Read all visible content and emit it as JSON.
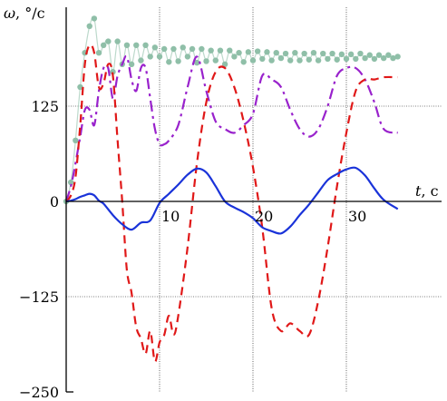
{
  "chart_data": {
    "type": "line",
    "title": "",
    "ylabel_symbol": "ω",
    "ylabel_unit": ", °/c",
    "xlabel_symbol": "t",
    "xlabel_unit": ", c",
    "xlim": [
      0,
      41
    ],
    "ylim": [
      -250,
      250
    ],
    "xticks": [
      10,
      20,
      30
    ],
    "xtick_labels": [
      "10",
      "20",
      "30"
    ],
    "yticks": [
      125,
      0,
      -125,
      -250
    ],
    "ytick_labels": [
      "125",
      "0",
      "−125",
      "−250"
    ],
    "grid": true,
    "colors": {
      "blue": "#1a33d9",
      "red": "#e01818",
      "purple": "#9922cc",
      "green": "#8fbfa8",
      "grid": "#000000",
      "axis": "#000000"
    },
    "series": [
      {
        "style": "solid",
        "color": "blue",
        "x": [
          0,
          0.5,
          1,
          1.5,
          2,
          2.5,
          3,
          3.5,
          4,
          5,
          6,
          7,
          8,
          9,
          10,
          11,
          12,
          13,
          14,
          15,
          16,
          17,
          18,
          19,
          20,
          21,
          22,
          23,
          24,
          25,
          26,
          27,
          28,
          29,
          30,
          31,
          32,
          33,
          34,
          35.5
        ],
        "y": [
          0,
          1,
          3,
          6,
          8,
          10,
          8,
          1,
          -3,
          -18,
          -30,
          -37,
          -28,
          -25,
          -2,
          10,
          22,
          35,
          43,
          38,
          20,
          0,
          -8,
          -14,
          -22,
          -34,
          -39,
          -42,
          -33,
          -18,
          -4,
          12,
          28,
          36,
          42,
          44,
          34,
          17,
          2,
          -10
        ]
      },
      {
        "style": "dashed",
        "color": "red",
        "x": [
          0,
          0.5,
          1,
          1.5,
          2,
          2.5,
          3,
          3.5,
          4,
          4.5,
          5,
          5.5,
          6,
          6.5,
          7,
          7.5,
          8,
          8.5,
          9,
          9.5,
          10,
          10.5,
          11,
          11.5,
          12,
          13,
          14,
          15,
          16,
          17,
          18,
          19,
          20,
          21,
          22,
          23,
          24,
          25,
          26,
          27,
          28,
          29,
          30,
          31,
          32,
          33,
          34,
          35.5
        ],
        "y": [
          0,
          8,
          32,
          100,
          180,
          205,
          195,
          150,
          155,
          180,
          165,
          80,
          0,
          -90,
          -120,
          -165,
          -180,
          -200,
          -170,
          -210,
          -185,
          -175,
          -150,
          -175,
          -150,
          -60,
          50,
          130,
          170,
          175,
          150,
          105,
          45,
          -35,
          -140,
          -170,
          -160,
          -170,
          -175,
          -130,
          -60,
          20,
          90,
          145,
          160,
          160,
          163,
          163
        ]
      },
      {
        "style": "dashdot",
        "color": "purple",
        "x": [
          0,
          0.5,
          1,
          1.5,
          2,
          2.5,
          3,
          3.5,
          4,
          4.5,
          5,
          5.5,
          6,
          6.5,
          7,
          7.5,
          8,
          8.5,
          9,
          9.5,
          10,
          10.5,
          11,
          12,
          13,
          14,
          15,
          16,
          17,
          18,
          19,
          20,
          21,
          22,
          23,
          24,
          25,
          26,
          27,
          28,
          29,
          30,
          31,
          32,
          33,
          34,
          35.5
        ],
        "y": [
          0,
          20,
          50,
          85,
          120,
          120,
          100,
          145,
          175,
          175,
          135,
          165,
          180,
          190,
          160,
          145,
          175,
          175,
          135,
          95,
          75,
          75,
          80,
          100,
          150,
          190,
          145,
          105,
          95,
          90,
          100,
          115,
          165,
          160,
          150,
          120,
          95,
          85,
          95,
          125,
          165,
          175,
          175,
          160,
          130,
          95,
          90
        ]
      },
      {
        "style": "dotted-markers",
        "color": "green",
        "x": [
          0,
          0.5,
          1,
          1.5,
          2,
          2.5,
          3,
          3.5,
          4,
          4.5,
          5,
          5.5,
          6,
          6.5,
          7,
          7.5,
          8,
          8.5,
          9,
          9.5,
          10,
          10.5,
          11,
          11.5,
          12,
          12.5,
          13,
          13.5,
          14,
          14.5,
          15,
          15.5,
          16,
          16.5,
          17,
          17.5,
          18,
          18.5,
          19,
          19.5,
          20,
          20.5,
          21,
          21.5,
          22,
          22.5,
          23,
          23.5,
          24,
          24.5,
          25,
          25.5,
          26,
          26.5,
          27,
          27.5,
          28,
          28.5,
          29,
          29.5,
          30,
          30.5,
          31,
          31.5,
          32,
          32.5,
          33,
          33.5,
          34,
          34.5,
          35,
          35.5
        ],
        "y": [
          0,
          25,
          80,
          150,
          195,
          230,
          240,
          195,
          205,
          210,
          170,
          210,
          180,
          205,
          180,
          205,
          185,
          205,
          190,
          202,
          190,
          200,
          183,
          200,
          184,
          202,
          190,
          200,
          182,
          200,
          184,
          198,
          185,
          198,
          180,
          198,
          190,
          195,
          183,
          196,
          185,
          197,
          187,
          196,
          185,
          195,
          188,
          194,
          185,
          195,
          185,
          194,
          186,
          195,
          185,
          194,
          187,
          194,
          186,
          193,
          187,
          193,
          187,
          194,
          188,
          192,
          187,
          192,
          188,
          192,
          188,
          190
        ]
      }
    ]
  }
}
